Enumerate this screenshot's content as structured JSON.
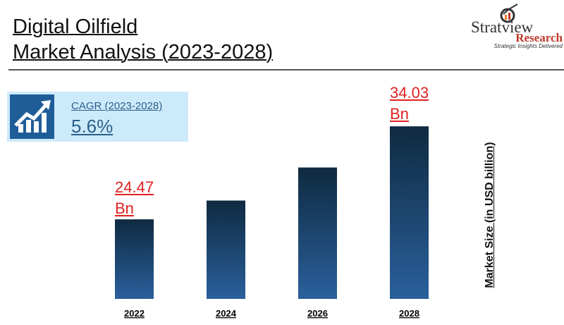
{
  "title_line1": "Digital Oilfield",
  "title_line2": "Market Analysis (2023-2028)",
  "logo": {
    "name": "Stratview",
    "sub": "Research",
    "tagline": "Strategic Insights Delivered"
  },
  "cagr": {
    "label": "CAGR (2023-2028)",
    "value": "5.6%",
    "icon": "growth-chart-icon"
  },
  "chart_data": {
    "type": "bar",
    "categories": [
      "2022",
      "2024",
      "2026",
      "2028"
    ],
    "values": [
      24.47,
      26.4,
      29.8,
      34.03
    ],
    "data_labels": [
      {
        "line1": "24.47",
        "line2": "Bn"
      },
      null,
      null,
      {
        "line1": "34.03",
        "line2": "Bn"
      }
    ],
    "ylabel": "Market Size (in USD billion)",
    "grid": false,
    "bar_colors": [
      "#0f2a40",
      "#2a609c"
    ]
  }
}
